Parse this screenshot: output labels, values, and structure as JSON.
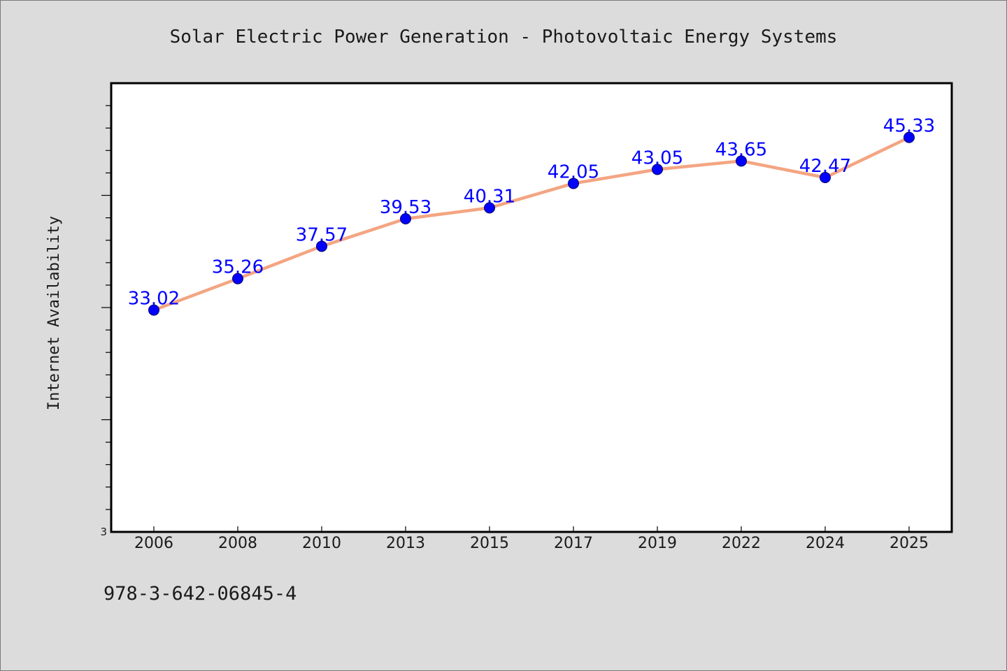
{
  "chart_data": {
    "type": "line",
    "title": "Solar Electric Power Generation - Photovoltaic Energy Systems",
    "xlabel": "",
    "ylabel": "Internet Availability",
    "categories": [
      "2006",
      "2008",
      "2010",
      "2013",
      "2015",
      "2017",
      "2019",
      "2022",
      "2024",
      "2025"
    ],
    "series": [
      {
        "values": [
          33.02,
          35.26,
          37.57,
          39.53,
          40.31,
          42.05,
          43.05,
          43.65,
          42.47,
          45.33
        ],
        "data_labels": [
          "33.02",
          "35.26",
          "37.57",
          "39.53",
          "40.31",
          "42.05",
          "43.05",
          "43.65",
          "42.47",
          "45.33"
        ],
        "line_color": "#f4a582",
        "marker_color": "#0000ff"
      }
    ],
    "ytick_labels": [
      "3"
    ],
    "ylim": [
      17.2,
      49.2
    ],
    "grid": false,
    "legend": "none",
    "label_color": "#0000ff",
    "plot_background": "#ffffff",
    "figure_background": "#dcdcdc"
  },
  "footer": {
    "code": "978-3-642-06845-4"
  }
}
